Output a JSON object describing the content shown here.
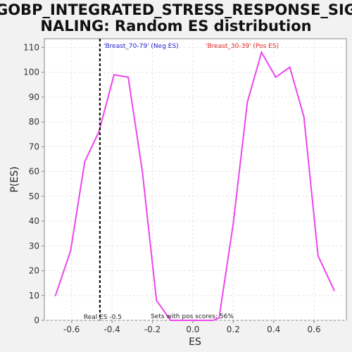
{
  "chart_data": {
    "type": "line",
    "title_line1": "GOBP_INTEGRATED_STRESS_RESPONSE_SIG",
    "title_line2": "NALING: Random ES distribution",
    "xlabel": "ES",
    "ylabel": "P(ES)",
    "xlim": [
      -0.735,
      0.76
    ],
    "ylim": [
      0,
      113.5
    ],
    "x_ticks": [
      -0.6,
      -0.4,
      -0.2,
      0.0,
      0.2,
      0.4,
      0.6
    ],
    "x_tick_labels": [
      "-0.6",
      "-0.4",
      "-0.2",
      "0.0",
      "0.2",
      "0.4",
      "0.6"
    ],
    "y_ticks": [
      0,
      10,
      20,
      30,
      40,
      50,
      60,
      70,
      80,
      90,
      100,
      110
    ],
    "y_tick_labels": [
      "0",
      "10",
      "20",
      "30",
      "40",
      "50",
      "60",
      "70",
      "80",
      "90",
      "100",
      "110"
    ],
    "grid": true,
    "line_color": "#ee44ee",
    "series": [
      {
        "x": [
          -0.68,
          -0.605,
          -0.535,
          -0.465,
          -0.39,
          -0.32,
          -0.25,
          -0.18,
          -0.11,
          -0.04,
          0.03,
          0.1,
          0.13,
          0.2,
          0.27,
          0.34,
          0.41,
          0.48,
          0.55,
          0.62,
          0.7
        ],
        "values": [
          10,
          28,
          64,
          76,
          99,
          98,
          60,
          8,
          0,
          0,
          0,
          0,
          1,
          39,
          88,
          108,
          98,
          102,
          82,
          26,
          12
        ]
      }
    ],
    "real_es": {
      "value": -0.46,
      "label": "Real ES -0.5",
      "color": "#111111"
    },
    "annotations": {
      "neg_label": "'Breast_70-79' (Neg ES)",
      "neg_color": "#2222cc",
      "pos_label": "'Breast_30-39' (Pos ES)",
      "pos_color": "#dd2222",
      "pos_scores_label": "Sets with pos scores: 56%"
    },
    "colors": {
      "plot_background": "#ffffff",
      "page_background": "#f2f2f2",
      "grid": "#e4e4e4",
      "axis": "#888888"
    }
  }
}
